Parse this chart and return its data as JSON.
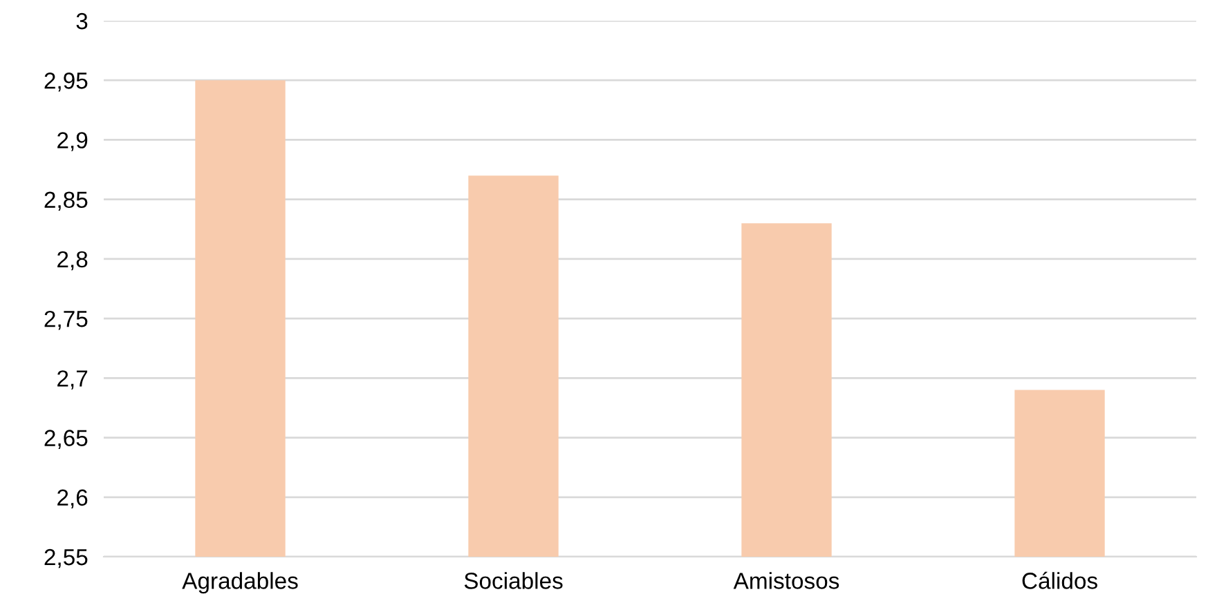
{
  "chart_data": {
    "type": "bar",
    "categories": [
      "Agradables",
      "Sociables",
      "Amistosos",
      "Cálidos"
    ],
    "values": [
      2.95,
      2.87,
      2.83,
      2.69
    ],
    "color": "#f8cbad",
    "ylim": [
      2.55,
      3
    ],
    "yticks": [
      {
        "value": 2.55,
        "label": "2,55"
      },
      {
        "value": 2.6,
        "label": "2,6"
      },
      {
        "value": 2.65,
        "label": "2,65"
      },
      {
        "value": 2.7,
        "label": "2,7"
      },
      {
        "value": 2.75,
        "label": "2,75"
      },
      {
        "value": 2.8,
        "label": "2,8"
      },
      {
        "value": 2.85,
        "label": "2,85"
      },
      {
        "value": 2.9,
        "label": "2,9"
      },
      {
        "value": 2.95,
        "label": "2,95"
      },
      {
        "value": 3,
        "label": "3"
      }
    ],
    "grid": "y",
    "legend": false
  }
}
